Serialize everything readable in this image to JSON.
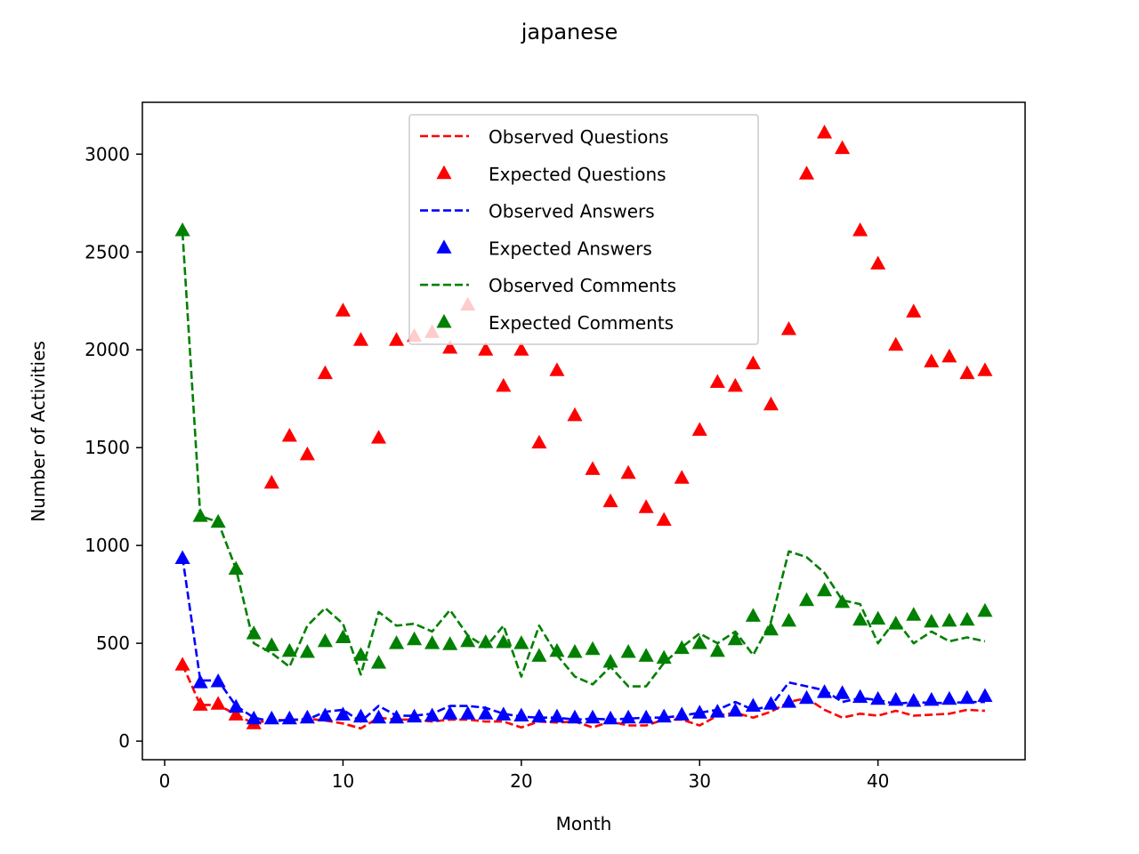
{
  "chart_data": {
    "type": "line",
    "title": "japanese",
    "xlabel": "Month",
    "ylabel": "Number of Activities",
    "xlim": [
      -1.25,
      48.25
    ],
    "ylim": [
      -95,
      3265
    ],
    "xticks": [
      0,
      10,
      20,
      30,
      40
    ],
    "yticks": [
      0,
      500,
      1000,
      1500,
      2000,
      2500,
      3000
    ],
    "grid": false,
    "legend_position": "top-center",
    "x": [
      1,
      2,
      3,
      4,
      5,
      6,
      7,
      8,
      9,
      10,
      11,
      12,
      13,
      14,
      15,
      16,
      17,
      18,
      19,
      20,
      21,
      22,
      23,
      24,
      25,
      26,
      27,
      28,
      29,
      30,
      31,
      32,
      33,
      34,
      35,
      36,
      37,
      38,
      39,
      40,
      41,
      42,
      43,
      44,
      45,
      46
    ],
    "series": [
      {
        "name": "Observed Questions",
        "style": "dashed-line",
        "color": "#ff0000",
        "values": [
          390,
          185,
          185,
          135,
          90,
          110,
          105,
          115,
          105,
          90,
          65,
          120,
          110,
          110,
          100,
          110,
          110,
          100,
          100,
          70,
          100,
          95,
          100,
          70,
          100,
          80,
          80,
          110,
          110,
          80,
          130,
          145,
          120,
          150,
          200,
          220,
          160,
          120,
          140,
          130,
          155,
          130,
          135,
          140,
          160,
          155
        ]
      },
      {
        "name": "Expected Questions",
        "style": "triangle-markers",
        "color": "#ff0000",
        "values": [
          390,
          185,
          190,
          135,
          90,
          1320,
          1560,
          1465,
          1880,
          2200,
          2050,
          1550,
          2050,
          2070,
          2090,
          2010,
          2230,
          2000,
          1815,
          2000,
          1525,
          1895,
          1665,
          1390,
          1225,
          1370,
          1195,
          1130,
          1345,
          1590,
          1835,
          1815,
          1930,
          1720,
          2105,
          2900,
          3110,
          3030,
          2610,
          2440,
          2025,
          2195,
          1940,
          1965,
          1880,
          1895
        ]
      },
      {
        "name": "Observed Answers",
        "style": "dashed-line",
        "color": "#0000ff",
        "values": [
          940,
          310,
          310,
          180,
          120,
          100,
          110,
          110,
          150,
          160,
          100,
          180,
          130,
          130,
          140,
          180,
          180,
          170,
          140,
          125,
          120,
          120,
          110,
          115,
          110,
          115,
          120,
          120,
          130,
          145,
          160,
          200,
          160,
          180,
          300,
          280,
          260,
          200,
          220,
          210,
          190,
          200,
          195,
          195,
          200,
          200
        ]
      },
      {
        "name": "Expected Answers",
        "style": "triangle-markers",
        "color": "#0000ff",
        "values": [
          935,
          300,
          305,
          175,
          115,
          115,
          115,
          120,
          130,
          135,
          125,
          120,
          120,
          125,
          130,
          140,
          140,
          140,
          135,
          130,
          125,
          125,
          120,
          120,
          115,
          120,
          120,
          125,
          135,
          145,
          150,
          155,
          180,
          190,
          200,
          220,
          250,
          245,
          225,
          215,
          210,
          205,
          210,
          215,
          220,
          230
        ]
      },
      {
        "name": "Observed Comments",
        "style": "dashed-line",
        "color": "#008000",
        "values": [
          2600,
          1150,
          1120,
          880,
          500,
          450,
          380,
          590,
          680,
          600,
          340,
          660,
          590,
          600,
          560,
          670,
          540,
          480,
          590,
          330,
          590,
          440,
          330,
          290,
          380,
          280,
          280,
          400,
          480,
          550,
          500,
          560,
          440,
          610,
          970,
          940,
          860,
          720,
          700,
          500,
          620,
          500,
          560,
          510,
          530,
          510
        ]
      },
      {
        "name": "Expected Comments",
        "style": "triangle-markers",
        "color": "#008000",
        "values": [
          2610,
          1150,
          1120,
          880,
          550,
          490,
          460,
          455,
          510,
          530,
          440,
          400,
          500,
          520,
          500,
          495,
          510,
          505,
          505,
          500,
          435,
          460,
          455,
          470,
          405,
          455,
          435,
          425,
          475,
          500,
          460,
          520,
          640,
          570,
          615,
          720,
          770,
          710,
          620,
          625,
          600,
          645,
          610,
          615,
          620,
          665
        ]
      }
    ]
  }
}
